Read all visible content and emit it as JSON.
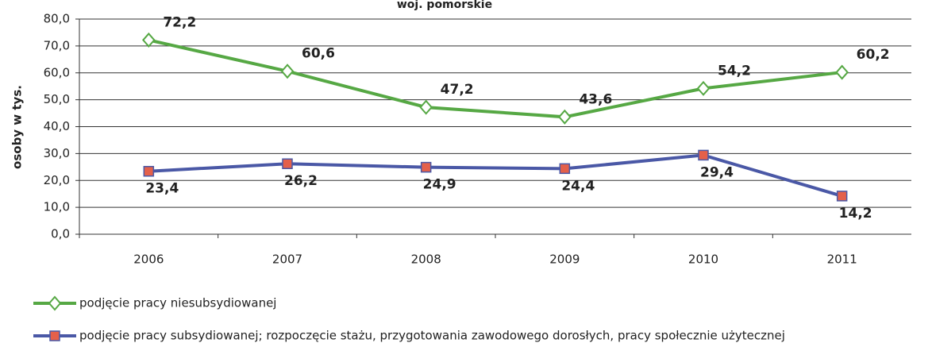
{
  "chart_data": {
    "type": "line",
    "title": "woj. pomorskie",
    "ylabel": "osoby w tys.",
    "categories": [
      "2006",
      "2007",
      "2008",
      "2009",
      "2010",
      "2011"
    ],
    "series": [
      {
        "name": "podjęcie pracy niesubsydiowanej",
        "color": "#56a844",
        "marker": "diamond",
        "marker_fill": "#ffffff",
        "values": [
          72.2,
          60.6,
          47.2,
          43.6,
          54.2,
          60.2
        ],
        "value_labels": [
          "72,2",
          "60,6",
          "47,2",
          "43,6",
          "54,2",
          "60,2"
        ]
      },
      {
        "name": "podjęcie pracy subsydiowanej; rozpoczęcie stażu, przygotowania zawodowego dorosłych, pracy społecznie użytecznej",
        "color": "#4a58a6",
        "marker": "square",
        "marker_fill": "#e4604a",
        "values": [
          23.4,
          26.2,
          24.9,
          24.4,
          29.4,
          14.2
        ],
        "value_labels": [
          "23,4",
          "26,2",
          "24,9",
          "24,4",
          "29,4",
          "14,2"
        ]
      }
    ],
    "ylim": [
      0,
      80
    ],
    "yticks": [
      {
        "value": 0,
        "label": "0,0"
      },
      {
        "value": 10,
        "label": "10,0"
      },
      {
        "value": 20,
        "label": "20,0"
      },
      {
        "value": 30,
        "label": "30,0"
      },
      {
        "value": 40,
        "label": "40,0"
      },
      {
        "value": 50,
        "label": "50,0"
      },
      {
        "value": 60,
        "label": "60,0"
      },
      {
        "value": 70,
        "label": "70,0"
      },
      {
        "value": 80,
        "label": "80,0"
      }
    ],
    "grid": true
  }
}
